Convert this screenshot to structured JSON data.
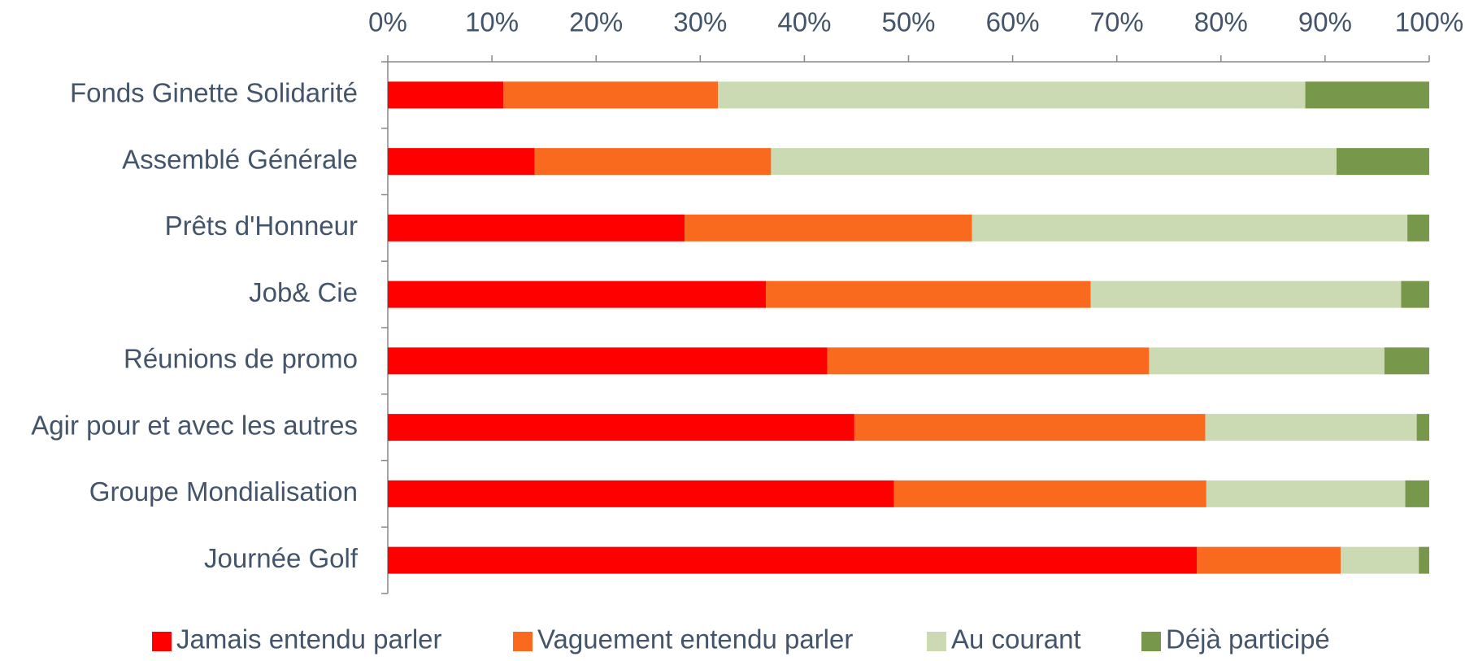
{
  "chart_data": {
    "type": "stacked_bar_horizontal",
    "categories": [
      "Fonds Ginette Solidarité",
      "Assemblé Générale",
      "Prêts d'Honneur",
      "Job& Cie",
      "Réunions de promo",
      "Agir pour et avec les autres",
      "Groupe Mondialisation",
      "Journée Golf"
    ],
    "series": [
      {
        "name": "Jamais entendu parler",
        "color": "#ff0000",
        "values": [
          11.1,
          14.1,
          28.5,
          36.3,
          42.2,
          44.8,
          48.6,
          77.7
        ]
      },
      {
        "name": "Vaguement entendu parler",
        "color": "#fa6a1e",
        "values": [
          20.6,
          22.7,
          27.6,
          31.2,
          30.9,
          33.7,
          30.0,
          13.8
        ]
      },
      {
        "name": "Au courant",
        "color": "#ccdab3",
        "values": [
          56.4,
          54.3,
          41.8,
          29.8,
          22.6,
          20.3,
          19.1,
          7.5
        ]
      },
      {
        "name": "Déjà participé",
        "color": "#77984a",
        "values": [
          11.9,
          8.9,
          2.1,
          2.7,
          4.3,
          1.2,
          2.3,
          1.0
        ]
      }
    ],
    "xlim": [
      0,
      100
    ],
    "xticks": [
      {
        "value": 0,
        "label": "0%"
      },
      {
        "value": 10,
        "label": "10%"
      },
      {
        "value": 20,
        "label": "20%"
      },
      {
        "value": 30,
        "label": "30%"
      },
      {
        "value": 40,
        "label": "40%"
      },
      {
        "value": 50,
        "label": "50%"
      },
      {
        "value": 60,
        "label": "60%"
      },
      {
        "value": 70,
        "label": "70%"
      },
      {
        "value": 80,
        "label": "80%"
      },
      {
        "value": 90,
        "label": "90%"
      },
      {
        "value": 100,
        "label": "100%"
      }
    ],
    "legend": "bottom"
  }
}
